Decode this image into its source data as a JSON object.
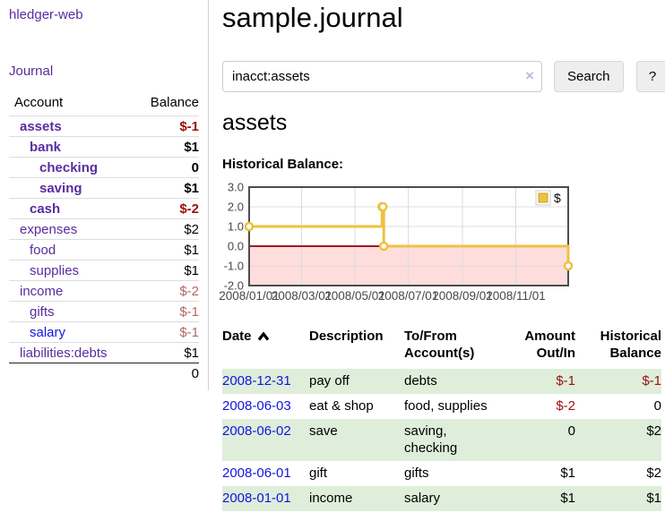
{
  "app": {
    "brand": "hledger-web",
    "nav_journal": "Journal"
  },
  "colors": {
    "link_visited": "#5a2ca0",
    "link_unvisited": "#1414dd",
    "negative_strong": "#a01010",
    "negative_soft": "#b46868",
    "row_highlight": "#deeeda",
    "chart_line": "#edc240",
    "chart_negative_region": "#ffdddd",
    "chart_zero_line": "#8b0000"
  },
  "sidebar": {
    "header": {
      "account": "Account",
      "balance": "Balance"
    },
    "accounts": [
      {
        "label": "assets",
        "indent": 1,
        "bold": true,
        "link": "visited",
        "balance": "$-1",
        "balance_color": "negative-strong",
        "balance_bold": true
      },
      {
        "label": "bank",
        "indent": 2,
        "bold": true,
        "link": "visited",
        "balance": "$1",
        "balance_color": "normal",
        "balance_bold": true
      },
      {
        "label": "checking",
        "indent": 3,
        "bold": true,
        "link": "visited",
        "balance": "0",
        "balance_color": "normal",
        "balance_bold": true
      },
      {
        "label": "saving",
        "indent": 3,
        "bold": true,
        "link": "visited",
        "balance": "$1",
        "balance_color": "normal",
        "balance_bold": true
      },
      {
        "label": "cash",
        "indent": 2,
        "bold": true,
        "link": "visited",
        "balance": "$-2",
        "balance_color": "negative-strong",
        "balance_bold": true
      },
      {
        "label": "expenses",
        "indent": 1,
        "bold": false,
        "link": "visited",
        "balance": "$2",
        "balance_color": "normal",
        "balance_bold": false
      },
      {
        "label": "food",
        "indent": 2,
        "bold": false,
        "link": "visited",
        "balance": "$1",
        "balance_color": "normal",
        "balance_bold": false
      },
      {
        "label": "supplies",
        "indent": 2,
        "bold": false,
        "link": "visited",
        "balance": "$1",
        "balance_color": "normal",
        "balance_bold": false
      },
      {
        "label": "income",
        "indent": 1,
        "bold": false,
        "link": "visited",
        "balance": "$-2",
        "balance_color": "negative-soft",
        "balance_bold": false
      },
      {
        "label": "gifts",
        "indent": 2,
        "bold": false,
        "link": "visited",
        "balance": "$-1",
        "balance_color": "negative-soft",
        "balance_bold": false
      },
      {
        "label": "salary",
        "indent": 2,
        "bold": false,
        "link": "unvisited",
        "balance": "$-1",
        "balance_color": "negative-soft",
        "balance_bold": false
      },
      {
        "label": "liabilities:debts",
        "indent": 1,
        "bold": false,
        "link": "visited",
        "balance": "$1",
        "balance_color": "normal",
        "balance_bold": false
      }
    ],
    "total": "0"
  },
  "header": {
    "title": "sample.journal"
  },
  "search": {
    "value": "inacct:assets",
    "clear_icon": "×",
    "button": "Search",
    "help_button": "?"
  },
  "account_page": {
    "title": "assets",
    "chart_label": "Historical Balance:"
  },
  "chart_data": {
    "type": "line",
    "step": true,
    "title": "Historical Balance:",
    "series": [
      {
        "name": "$",
        "color": "#edc240",
        "points": [
          [
            "2008-01-01",
            1
          ],
          [
            "2008-06-01",
            2
          ],
          [
            "2008-06-02",
            2
          ],
          [
            "2008-06-03",
            0
          ],
          [
            "2008-12-31",
            -1
          ]
        ]
      }
    ],
    "xlim": [
      "2008-01-01",
      "2008-12-31"
    ],
    "ylim": [
      -2,
      3
    ],
    "yticks": [
      3.0,
      2.0,
      1.0,
      0.0,
      -1.0,
      -2.0
    ],
    "xticks": [
      {
        "date": "2008-01-01",
        "label": "2008/01/01"
      },
      {
        "date": "2008-03-01",
        "label": "2008/03/01"
      },
      {
        "date": "2008-05-01",
        "label": "2008/05/01"
      },
      {
        "date": "2008-07-01",
        "label": "2008/07/01"
      },
      {
        "date": "2008-09-01",
        "label": "2008/09/01"
      },
      {
        "date": "2008-11-01",
        "label": "2008/11/01"
      }
    ],
    "legend_position": "top-right",
    "grid": true,
    "negative_region_color": "#ffdddd",
    "zero_line_color": "#8b0000"
  },
  "register": {
    "columns": [
      {
        "label": "Date",
        "sorted": "asc"
      },
      {
        "label": "Description"
      },
      {
        "label": "To/From Account(s)"
      },
      {
        "label": "Amount Out/In"
      },
      {
        "label": "Historical Balance"
      }
    ],
    "rows": [
      {
        "date": "2008-12-31",
        "description": "pay off",
        "accounts": "debts",
        "amount": "$-1",
        "amount_negative": true,
        "balance": "$-1",
        "balance_negative": true,
        "highlight": true
      },
      {
        "date": "2008-06-03",
        "description": "eat & shop",
        "accounts": "food, supplies",
        "amount": "$-2",
        "amount_negative": true,
        "balance": "0",
        "balance_negative": false,
        "highlight": false
      },
      {
        "date": "2008-06-02",
        "description": "save",
        "accounts": "saving, checking",
        "amount": "0",
        "amount_negative": false,
        "balance": "$2",
        "balance_negative": false,
        "highlight": true
      },
      {
        "date": "2008-06-01",
        "description": "gift",
        "accounts": "gifts",
        "amount": "$1",
        "amount_negative": false,
        "balance": "$2",
        "balance_negative": false,
        "highlight": false
      },
      {
        "date": "2008-01-01",
        "description": "income",
        "accounts": "salary",
        "amount": "$1",
        "amount_negative": false,
        "balance": "$1",
        "balance_negative": false,
        "highlight": true
      }
    ]
  }
}
